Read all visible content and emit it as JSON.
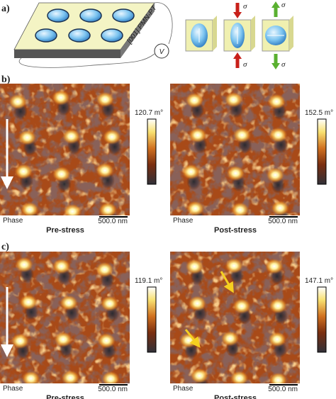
{
  "panel_a": {
    "label": "a)",
    "substrate_label": "[001] PMN-PT",
    "voltage": "V",
    "stress_symbols": [
      "σ",
      "σ",
      "σ",
      "σ"
    ]
  },
  "panel_b": {
    "label": "b)",
    "images": [
      {
        "scale_max": "120.7 m°",
        "channel": "Phase",
        "scale_bar": "500.0 nm",
        "caption": "Pre-stress"
      },
      {
        "scale_max": "152.5 m°",
        "channel": "Phase",
        "scale_bar": "500.0 nm",
        "caption": "Post-stress"
      }
    ]
  },
  "panel_c": {
    "label": "c)",
    "images": [
      {
        "scale_max": "119.1 m°",
        "channel": "Phase",
        "scale_bar": "500.0 nm",
        "caption": "Pre-stress"
      },
      {
        "scale_max": "147.1 m°",
        "channel": "Phase",
        "scale_bar": "500.0 nm",
        "caption": "Post-stress"
      }
    ]
  }
}
